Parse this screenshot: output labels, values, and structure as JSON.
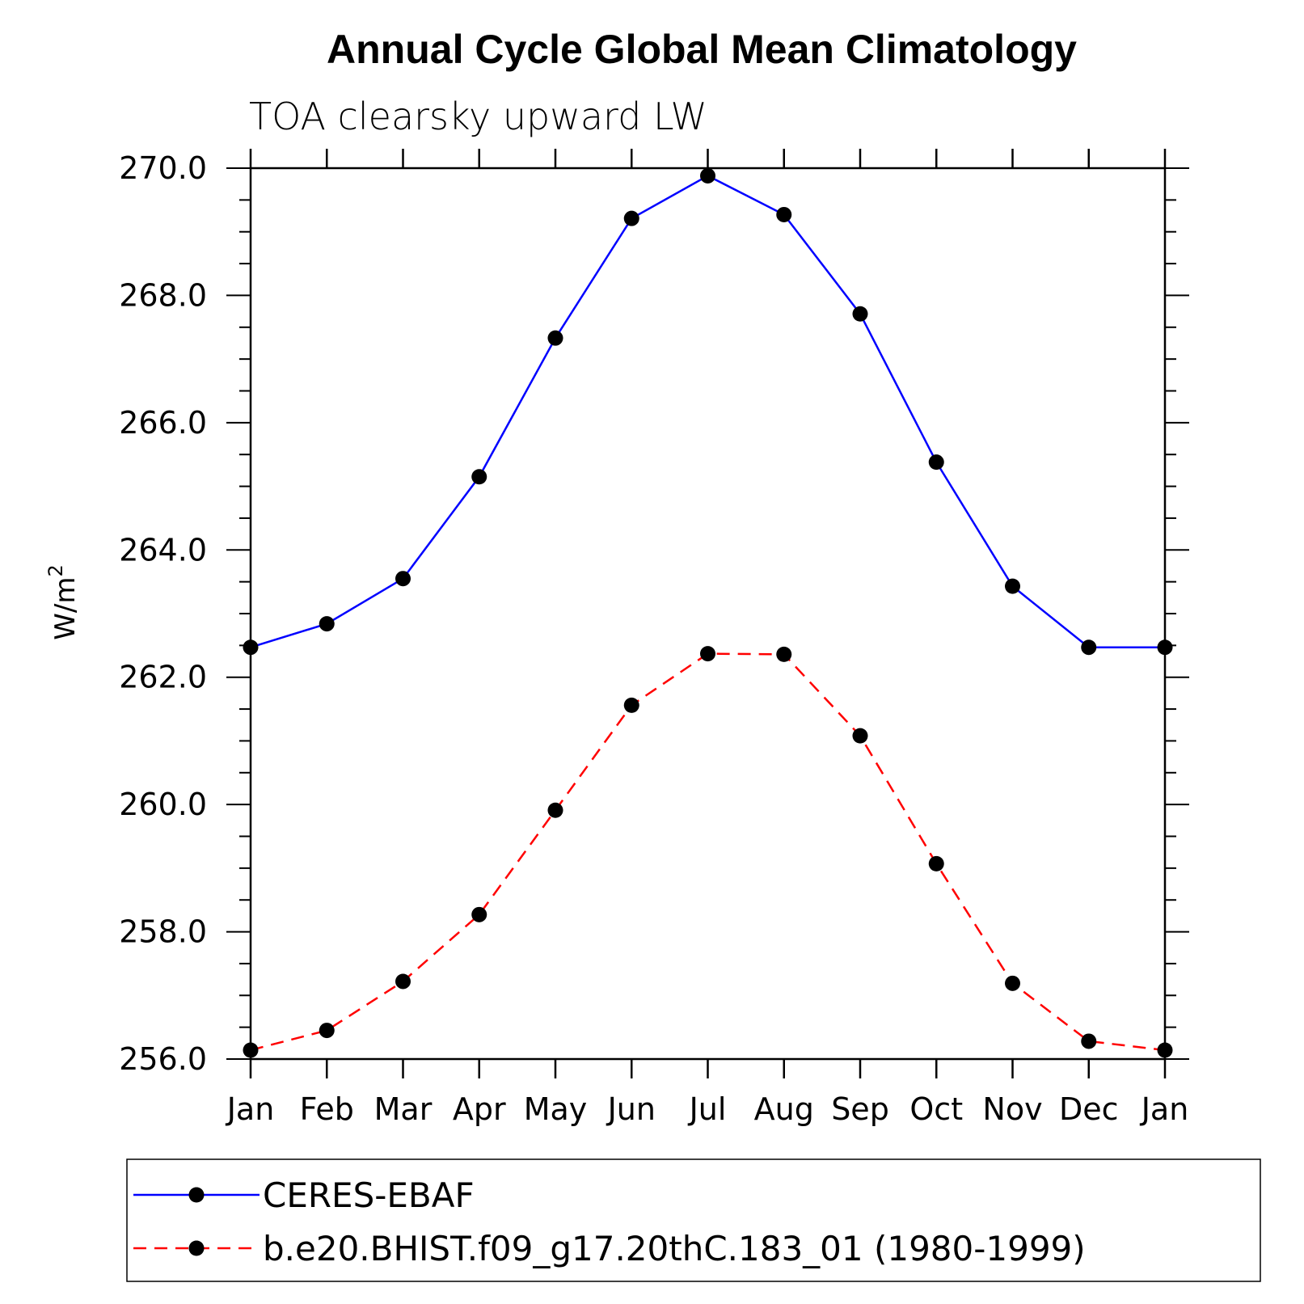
{
  "chart_data": {
    "type": "line",
    "title": "Annual Cycle Global Mean Climatology",
    "subtitle": "TOA clearsky upward LW",
    "xlabel": "",
    "ylabel": "W/m",
    "ylabel_superscript": "2",
    "categories": [
      "Jan",
      "Feb",
      "Mar",
      "Apr",
      "May",
      "Jun",
      "Jul",
      "Aug",
      "Sep",
      "Oct",
      "Nov",
      "Dec",
      "Jan"
    ],
    "ylim": [
      256.0,
      270.0
    ],
    "yticks": [
      256.0,
      258.0,
      260.0,
      262.0,
      264.0,
      266.0,
      268.0,
      270.0
    ],
    "ytick_labels": [
      "256.0",
      "258.0",
      "260.0",
      "262.0",
      "264.0",
      "266.0",
      "268.0",
      "270.0"
    ],
    "grid": false,
    "legend_position": "bottom",
    "series": [
      {
        "name": "CERES-EBAF",
        "color": "#0000ff",
        "line_style": "solid",
        "marker": "filled-circle",
        "values": [
          262.47,
          262.84,
          263.55,
          265.15,
          267.33,
          269.21,
          269.88,
          269.27,
          267.71,
          265.38,
          263.43,
          262.47,
          262.47
        ]
      },
      {
        "name": "b.e20.BHIST.f09_g17.20thC.183_01 (1980-1999)",
        "color": "#ff0000",
        "line_style": "dashed",
        "marker": "filled-circle",
        "values": [
          256.14,
          256.45,
          257.22,
          258.27,
          259.91,
          261.56,
          262.37,
          262.36,
          261.08,
          259.07,
          257.19,
          256.28,
          256.14
        ]
      }
    ]
  }
}
